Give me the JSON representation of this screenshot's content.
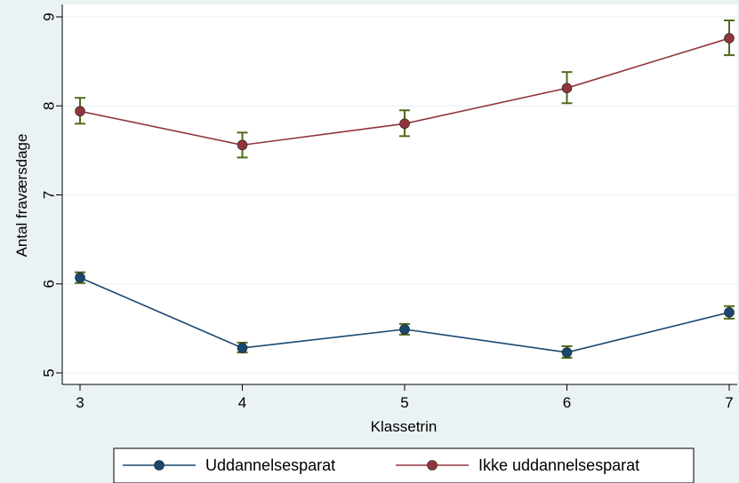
{
  "chart_data": {
    "type": "line",
    "title": "",
    "xlabel": "Klassetrin",
    "ylabel": "Antal fraværsdage",
    "x": [
      3,
      4,
      5,
      6,
      7
    ],
    "xlim": [
      3,
      7
    ],
    "ylim": [
      5,
      9
    ],
    "yticks": [
      5,
      6,
      7,
      8,
      9
    ],
    "grid": true,
    "legend_position": "bottom",
    "errorbar_color": "#4f6b1a",
    "series": [
      {
        "name": "Uddannelsesparat",
        "color": "#1a476f",
        "values": [
          6.07,
          5.28,
          5.49,
          5.23,
          5.68
        ],
        "lower": [
          6.01,
          5.23,
          5.43,
          5.17,
          5.61
        ],
        "upper": [
          6.13,
          5.34,
          5.55,
          5.3,
          5.75
        ]
      },
      {
        "name": "Ikke uddannelsesparat",
        "color": "#90353b",
        "values": [
          7.94,
          7.56,
          7.8,
          8.2,
          8.76
        ],
        "lower": [
          7.8,
          7.42,
          7.66,
          8.03,
          8.57
        ],
        "upper": [
          8.09,
          7.7,
          7.95,
          8.38,
          8.96
        ]
      }
    ]
  }
}
